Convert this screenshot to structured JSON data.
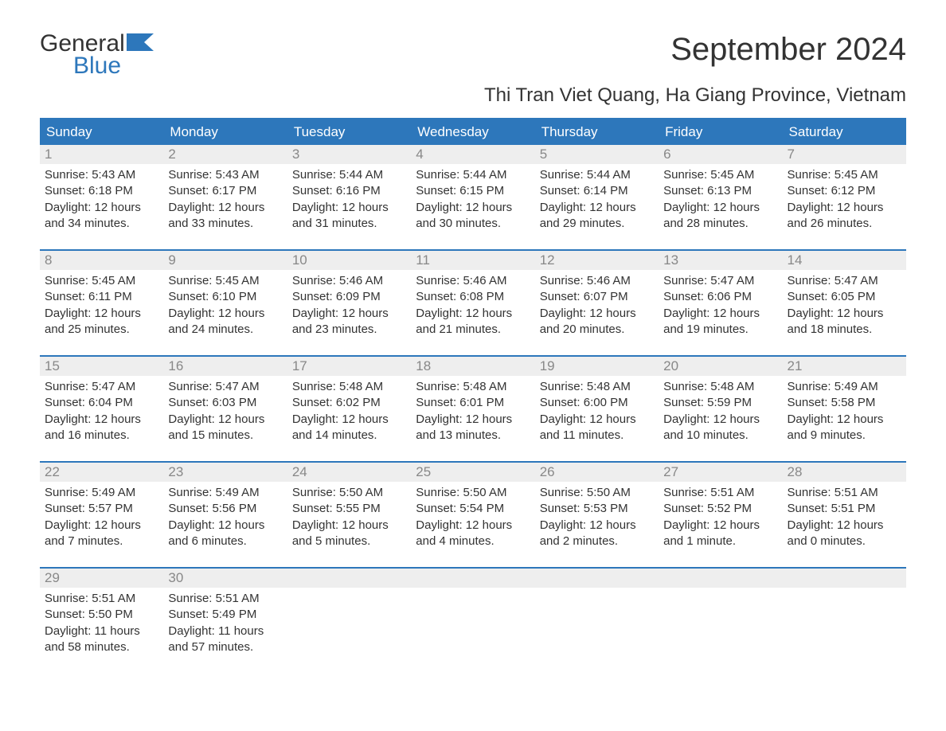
{
  "logo": {
    "word1": "General",
    "word2": "Blue"
  },
  "title": "September 2024",
  "location": "Thi Tran Viet Quang, Ha Giang Province, Vietnam",
  "colors": {
    "header_bg": "#2d77bb",
    "header_text": "#ffffff",
    "daynum_bg": "#eeeeee",
    "daynum_text": "#888888",
    "border": "#2d77bb",
    "body_text": "#333333"
  },
  "day_names": [
    "Sunday",
    "Monday",
    "Tuesday",
    "Wednesday",
    "Thursday",
    "Friday",
    "Saturday"
  ],
  "weeks": [
    [
      {
        "num": "1",
        "sunrise": "5:43 AM",
        "sunset": "6:18 PM",
        "daylight": "12 hours and 34 minutes."
      },
      {
        "num": "2",
        "sunrise": "5:43 AM",
        "sunset": "6:17 PM",
        "daylight": "12 hours and 33 minutes."
      },
      {
        "num": "3",
        "sunrise": "5:44 AM",
        "sunset": "6:16 PM",
        "daylight": "12 hours and 31 minutes."
      },
      {
        "num": "4",
        "sunrise": "5:44 AM",
        "sunset": "6:15 PM",
        "daylight": "12 hours and 30 minutes."
      },
      {
        "num": "5",
        "sunrise": "5:44 AM",
        "sunset": "6:14 PM",
        "daylight": "12 hours and 29 minutes."
      },
      {
        "num": "6",
        "sunrise": "5:45 AM",
        "sunset": "6:13 PM",
        "daylight": "12 hours and 28 minutes."
      },
      {
        "num": "7",
        "sunrise": "5:45 AM",
        "sunset": "6:12 PM",
        "daylight": "12 hours and 26 minutes."
      }
    ],
    [
      {
        "num": "8",
        "sunrise": "5:45 AM",
        "sunset": "6:11 PM",
        "daylight": "12 hours and 25 minutes."
      },
      {
        "num": "9",
        "sunrise": "5:45 AM",
        "sunset": "6:10 PM",
        "daylight": "12 hours and 24 minutes."
      },
      {
        "num": "10",
        "sunrise": "5:46 AM",
        "sunset": "6:09 PM",
        "daylight": "12 hours and 23 minutes."
      },
      {
        "num": "11",
        "sunrise": "5:46 AM",
        "sunset": "6:08 PM",
        "daylight": "12 hours and 21 minutes."
      },
      {
        "num": "12",
        "sunrise": "5:46 AM",
        "sunset": "6:07 PM",
        "daylight": "12 hours and 20 minutes."
      },
      {
        "num": "13",
        "sunrise": "5:47 AM",
        "sunset": "6:06 PM",
        "daylight": "12 hours and 19 minutes."
      },
      {
        "num": "14",
        "sunrise": "5:47 AM",
        "sunset": "6:05 PM",
        "daylight": "12 hours and 18 minutes."
      }
    ],
    [
      {
        "num": "15",
        "sunrise": "5:47 AM",
        "sunset": "6:04 PM",
        "daylight": "12 hours and 16 minutes."
      },
      {
        "num": "16",
        "sunrise": "5:47 AM",
        "sunset": "6:03 PM",
        "daylight": "12 hours and 15 minutes."
      },
      {
        "num": "17",
        "sunrise": "5:48 AM",
        "sunset": "6:02 PM",
        "daylight": "12 hours and 14 minutes."
      },
      {
        "num": "18",
        "sunrise": "5:48 AM",
        "sunset": "6:01 PM",
        "daylight": "12 hours and 13 minutes."
      },
      {
        "num": "19",
        "sunrise": "5:48 AM",
        "sunset": "6:00 PM",
        "daylight": "12 hours and 11 minutes."
      },
      {
        "num": "20",
        "sunrise": "5:48 AM",
        "sunset": "5:59 PM",
        "daylight": "12 hours and 10 minutes."
      },
      {
        "num": "21",
        "sunrise": "5:49 AM",
        "sunset": "5:58 PM",
        "daylight": "12 hours and 9 minutes."
      }
    ],
    [
      {
        "num": "22",
        "sunrise": "5:49 AM",
        "sunset": "5:57 PM",
        "daylight": "12 hours and 7 minutes."
      },
      {
        "num": "23",
        "sunrise": "5:49 AM",
        "sunset": "5:56 PM",
        "daylight": "12 hours and 6 minutes."
      },
      {
        "num": "24",
        "sunrise": "5:50 AM",
        "sunset": "5:55 PM",
        "daylight": "12 hours and 5 minutes."
      },
      {
        "num": "25",
        "sunrise": "5:50 AM",
        "sunset": "5:54 PM",
        "daylight": "12 hours and 4 minutes."
      },
      {
        "num": "26",
        "sunrise": "5:50 AM",
        "sunset": "5:53 PM",
        "daylight": "12 hours and 2 minutes."
      },
      {
        "num": "27",
        "sunrise": "5:51 AM",
        "sunset": "5:52 PM",
        "daylight": "12 hours and 1 minute."
      },
      {
        "num": "28",
        "sunrise": "5:51 AM",
        "sunset": "5:51 PM",
        "daylight": "12 hours and 0 minutes."
      }
    ],
    [
      {
        "num": "29",
        "sunrise": "5:51 AM",
        "sunset": "5:50 PM",
        "daylight": "11 hours and 58 minutes."
      },
      {
        "num": "30",
        "sunrise": "5:51 AM",
        "sunset": "5:49 PM",
        "daylight": "11 hours and 57 minutes."
      },
      null,
      null,
      null,
      null,
      null
    ]
  ],
  "labels": {
    "sunrise": "Sunrise: ",
    "sunset": "Sunset: ",
    "daylight": "Daylight: "
  }
}
